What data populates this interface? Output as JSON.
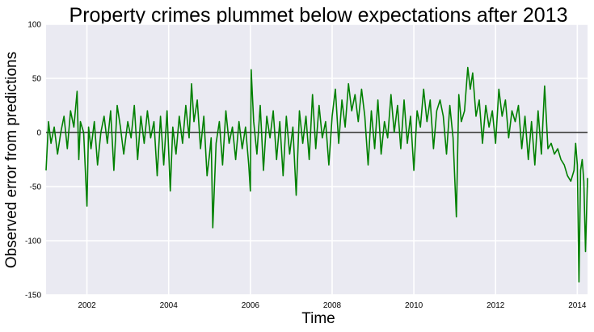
{
  "chart_data": {
    "type": "line",
    "title": "Property crimes plummet below expectations after 2013",
    "xlabel": "Time",
    "ylabel": "Observed error from predictions",
    "xlim": [
      2001.0,
      2014.25
    ],
    "ylim": [
      -150,
      100
    ],
    "x_ticks": [
      2002,
      2004,
      2006,
      2008,
      2010,
      2012,
      2014
    ],
    "y_ticks": [
      -150,
      -100,
      -50,
      0,
      50,
      100
    ],
    "grid": true,
    "reference_line": 0,
    "colors": {
      "series": "#008000",
      "reference": "#000000",
      "background": "#eaeaf2",
      "grid": "#ffffff"
    },
    "series": [
      {
        "x": [
          2001.0,
          2001.06,
          2001.12,
          2001.2,
          2001.28,
          2001.36,
          2001.44,
          2001.52,
          2001.6,
          2001.68,
          2001.76,
          2001.8,
          2001.84,
          2001.92,
          2002.0,
          2002.04,
          2002.1,
          2002.18,
          2002.26,
          2002.34,
          2002.42,
          2002.5,
          2002.58,
          2002.66,
          2002.74,
          2002.82,
          2002.9,
          2003.0,
          2003.08,
          2003.16,
          2003.24,
          2003.32,
          2003.4,
          2003.48,
          2003.56,
          2003.64,
          2003.72,
          2003.8,
          2003.88,
          2003.96,
          2004.04,
          2004.1,
          2004.18,
          2004.26,
          2004.34,
          2004.42,
          2004.5,
          2004.56,
          2004.62,
          2004.7,
          2004.78,
          2004.86,
          2004.94,
          2005.0,
          2005.04,
          2005.08,
          2005.16,
          2005.24,
          2005.32,
          2005.4,
          2005.48,
          2005.56,
          2005.64,
          2005.72,
          2005.8,
          2005.88,
          2005.96,
          2006.0,
          2006.02,
          2006.08,
          2006.16,
          2006.24,
          2006.32,
          2006.4,
          2006.48,
          2006.56,
          2006.64,
          2006.72,
          2006.8,
          2006.88,
          2006.96,
          2007.04,
          2007.12,
          2007.2,
          2007.28,
          2007.36,
          2007.44,
          2007.52,
          2007.6,
          2007.68,
          2007.76,
          2007.84,
          2007.92,
          2008.0,
          2008.08,
          2008.16,
          2008.24,
          2008.32,
          2008.4,
          2008.48,
          2008.56,
          2008.64,
          2008.72,
          2008.8,
          2008.88,
          2008.96,
          2009.04,
          2009.12,
          2009.2,
          2009.28,
          2009.36,
          2009.44,
          2009.52,
          2009.6,
          2009.68,
          2009.76,
          2009.84,
          2009.92,
          2010.0,
          2010.08,
          2010.16,
          2010.24,
          2010.32,
          2010.4,
          2010.48,
          2010.56,
          2010.64,
          2010.72,
          2010.8,
          2010.88,
          2010.96,
          2011.04,
          2011.1,
          2011.16,
          2011.24,
          2011.32,
          2011.38,
          2011.44,
          2011.52,
          2011.6,
          2011.68,
          2011.76,
          2011.84,
          2011.92,
          2012.0,
          2012.08,
          2012.16,
          2012.24,
          2012.32,
          2012.4,
          2012.48,
          2012.56,
          2012.64,
          2012.72,
          2012.8,
          2012.88,
          2012.96,
          2013.04,
          2013.12,
          2013.2,
          2013.28,
          2013.36,
          2013.44,
          2013.52,
          2013.6,
          2013.68,
          2013.76,
          2013.84,
          2013.92,
          2013.96,
          2014.0,
          2014.04,
          2014.08,
          2014.12,
          2014.16,
          2014.2,
          2014.25
        ],
        "y": [
          -35,
          10,
          -10,
          5,
          -20,
          0,
          15,
          -15,
          20,
          5,
          38,
          -25,
          10,
          0,
          -68,
          5,
          -15,
          10,
          -30,
          0,
          15,
          -10,
          20,
          -35,
          25,
          5,
          -20,
          10,
          -5,
          25,
          -25,
          15,
          -10,
          20,
          -5,
          10,
          -40,
          15,
          -30,
          20,
          -54,
          5,
          -20,
          15,
          -10,
          25,
          -5,
          45,
          10,
          30,
          -15,
          15,
          -40,
          -20,
          -5,
          -88,
          -10,
          10,
          -30,
          20,
          -10,
          5,
          -25,
          10,
          -15,
          5,
          -30,
          -54,
          58,
          10,
          -20,
          25,
          -35,
          15,
          -5,
          20,
          -25,
          10,
          -40,
          15,
          -20,
          5,
          -58,
          20,
          -10,
          15,
          -25,
          35,
          -15,
          25,
          -5,
          10,
          -30,
          15,
          40,
          -10,
          30,
          5,
          45,
          20,
          35,
          10,
          40,
          15,
          -30,
          20,
          -15,
          30,
          -20,
          10,
          -5,
          35,
          0,
          25,
          -15,
          30,
          -10,
          15,
          -35,
          20,
          5,
          40,
          10,
          30,
          -15,
          20,
          30,
          15,
          -20,
          25,
          -5,
          -78,
          35,
          10,
          20,
          60,
          40,
          55,
          15,
          30,
          -10,
          25,
          5,
          20,
          -10,
          40,
          15,
          30,
          -5,
          20,
          10,
          25,
          -15,
          15,
          -25,
          10,
          -30,
          20,
          -20,
          43,
          -15,
          -10,
          -20,
          -15,
          -25,
          -30,
          -40,
          -45,
          -35,
          -10,
          -30,
          -138,
          -35,
          -25,
          -45,
          -110,
          -42
        ]
      }
    ]
  }
}
